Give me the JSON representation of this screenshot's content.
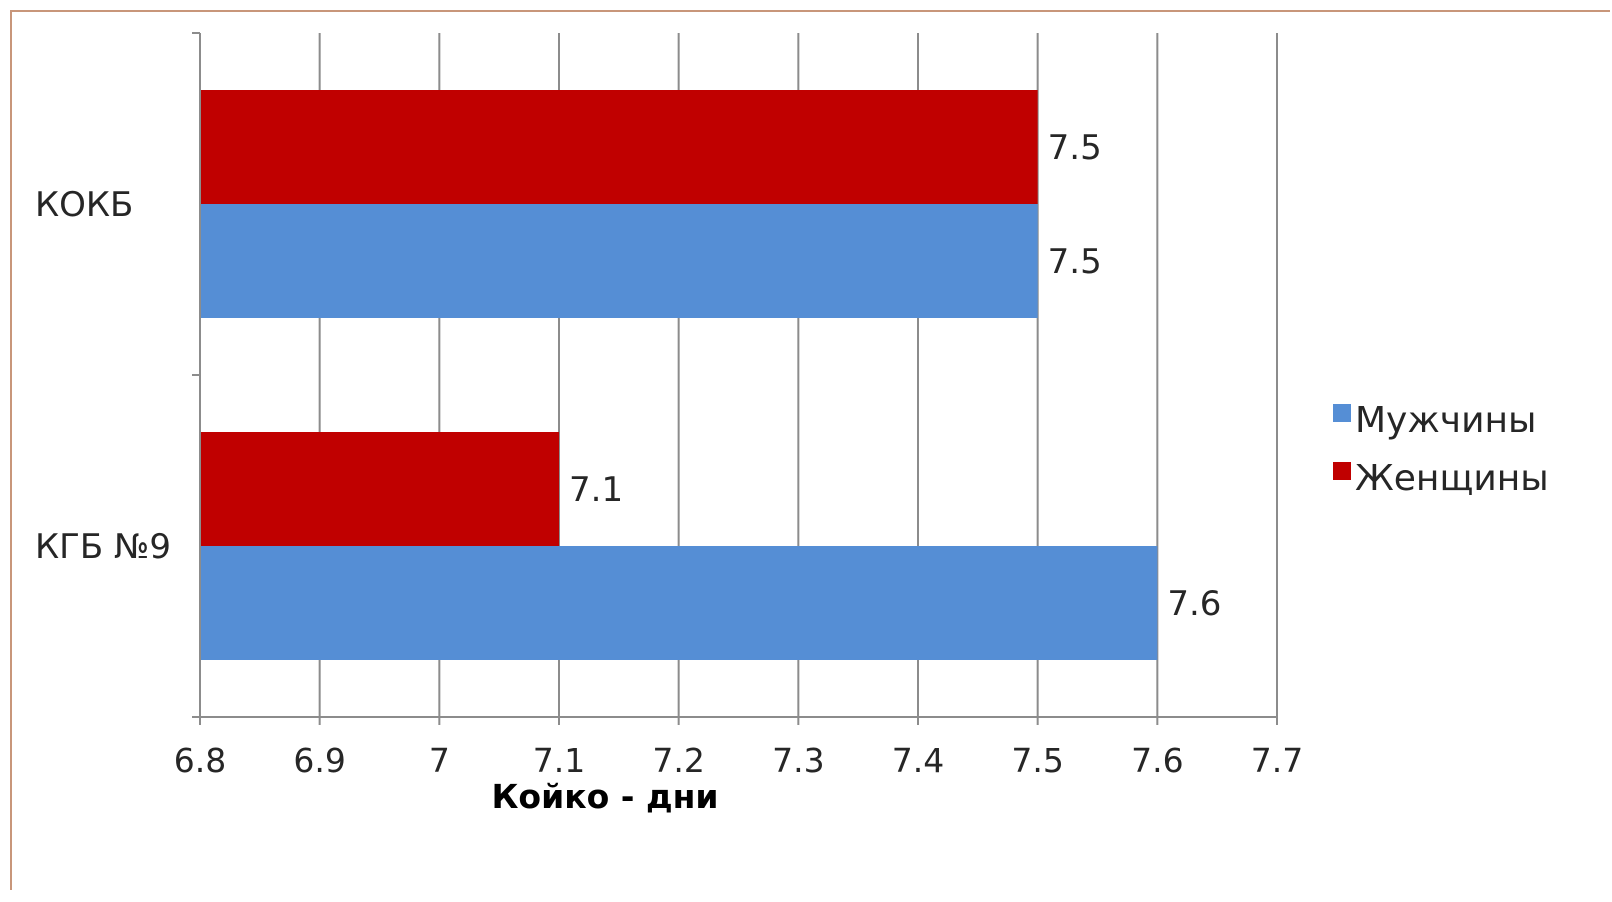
{
  "chart_data": {
    "type": "bar",
    "orientation": "horizontal",
    "categories": [
      "КОКБ",
      "КГБ №9"
    ],
    "series": [
      {
        "name": "Мужчины",
        "color": "#558ed5",
        "values": [
          7.5,
          7.6
        ]
      },
      {
        "name": "Женщины",
        "color": "#c00000",
        "values": [
          7.5,
          7.1
        ]
      }
    ],
    "data_labels": [
      [
        "7.5",
        "7.6"
      ],
      [
        "7.5",
        "7.1"
      ]
    ],
    "xlabel": "Койко - дни",
    "ylabel": "",
    "title": "",
    "xlim": [
      6.8,
      7.7
    ],
    "x_ticks": [
      6.8,
      6.9,
      7.0,
      7.1,
      7.2,
      7.3,
      7.4,
      7.5,
      7.6,
      7.7
    ],
    "x_tick_labels": [
      "6.8",
      "6.9",
      "7",
      "7.1",
      "7.2",
      "7.3",
      "7.4",
      "7.5",
      "7.6",
      "7.7"
    ],
    "grid": "vertical-major",
    "legend_position": "right"
  }
}
